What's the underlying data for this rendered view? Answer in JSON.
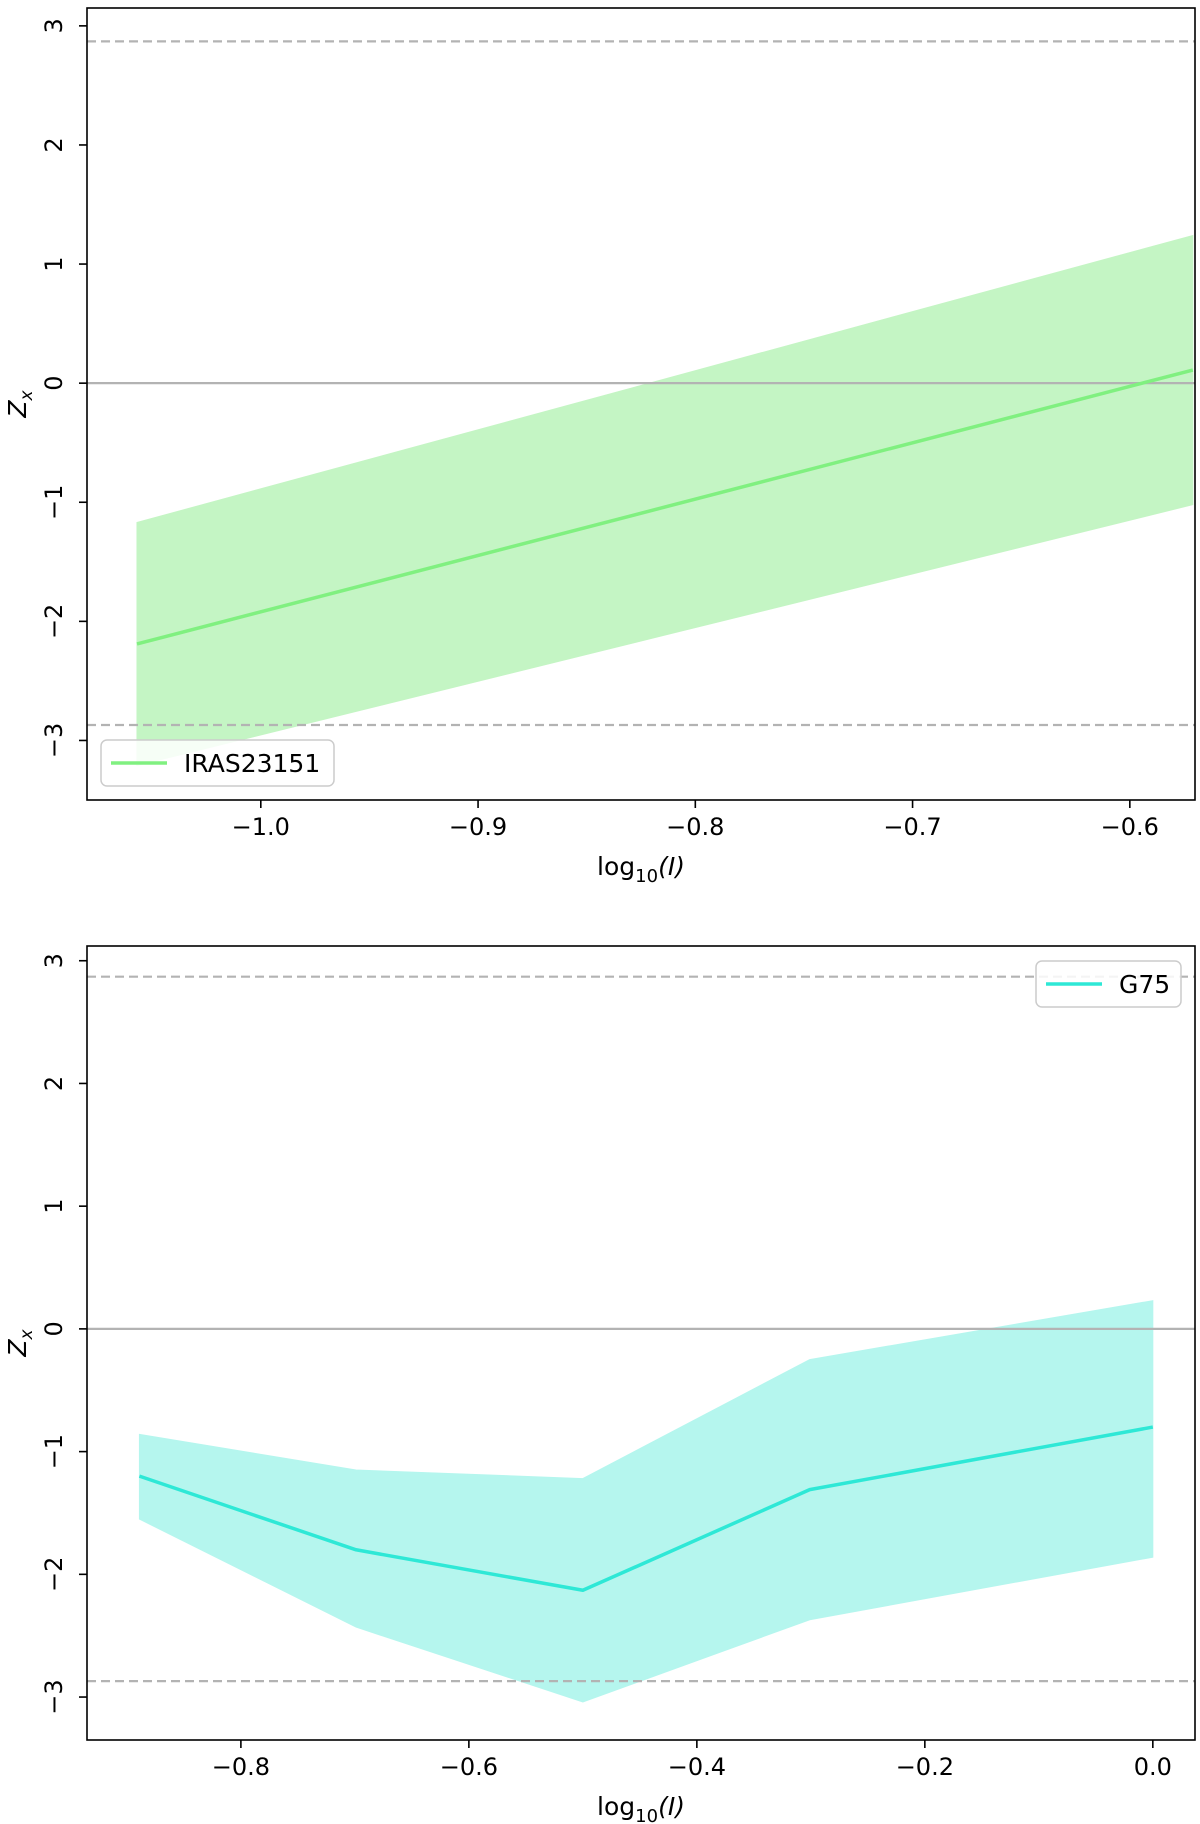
{
  "chart_data": [
    {
      "type": "line",
      "title": "",
      "xlabel_base": "log",
      "xlabel_sub": "10",
      "xlabel_arg": "(I)",
      "ylabel_base": "Z",
      "ylabel_sub": "x",
      "xlim": [
        -1.08,
        -0.57
      ],
      "ylim": [
        -3.5,
        3.15
      ],
      "xticks": [
        -1.0,
        -0.9,
        -0.8,
        -0.7,
        -0.6
      ],
      "xtick_labels": [
        "−1.0",
        "−0.9",
        "−0.8",
        "−0.7",
        "−0.6"
      ],
      "yticks": [
        -3,
        -2,
        -1,
        0,
        1,
        2,
        3
      ],
      "ytick_labels": [
        "−3",
        "−2",
        "−1",
        "0",
        "1",
        "2",
        "3"
      ],
      "legend_position": "lower-left",
      "reference_lines": {
        "zero": 0,
        "upper": 2.87,
        "lower": -2.87
      },
      "series": [
        {
          "name": "IRAS23151",
          "color": "#80f080",
          "band_color": "#c4f5c4",
          "x": [
            -1.057,
            -0.571
          ],
          "y": [
            -2.19,
            0.11
          ],
          "y_upper": [
            -1.17,
            1.24
          ],
          "y_lower": [
            -3.21,
            -1.02
          ]
        }
      ]
    },
    {
      "type": "line",
      "title": "",
      "xlabel_base": "log",
      "xlabel_sub": "10",
      "xlabel_arg": "(I)",
      "ylabel_base": "Z",
      "ylabel_sub": "x",
      "xlim": [
        -0.935,
        0.037
      ],
      "ylim": [
        -3.35,
        3.12
      ],
      "xticks": [
        -0.8,
        -0.6,
        -0.4,
        -0.2,
        0.0
      ],
      "xtick_labels": [
        "−0.8",
        "−0.6",
        "−0.4",
        "−0.2",
        "0.0"
      ],
      "yticks": [
        -3,
        -2,
        -1,
        0,
        1,
        2,
        3
      ],
      "ytick_labels": [
        "−3",
        "−2",
        "−1",
        "0",
        "1",
        "2",
        "3"
      ],
      "legend_position": "upper-right",
      "reference_lines": {
        "zero": 0,
        "upper": 2.87,
        "lower": -2.87
      },
      "series": [
        {
          "name": "G75",
          "color": "#2ee8d6",
          "band_color": "#b5f6ee",
          "x": [
            -0.889,
            -0.699,
            -0.5,
            -0.301,
            0.0
          ],
          "y": [
            -1.2,
            -1.8,
            -2.13,
            -1.31,
            -0.8
          ],
          "y_upper": [
            -0.86,
            -1.15,
            -1.22,
            -0.25,
            0.23
          ],
          "y_lower": [
            -1.55,
            -2.43,
            -3.04,
            -2.37,
            -1.86
          ]
        }
      ]
    }
  ]
}
